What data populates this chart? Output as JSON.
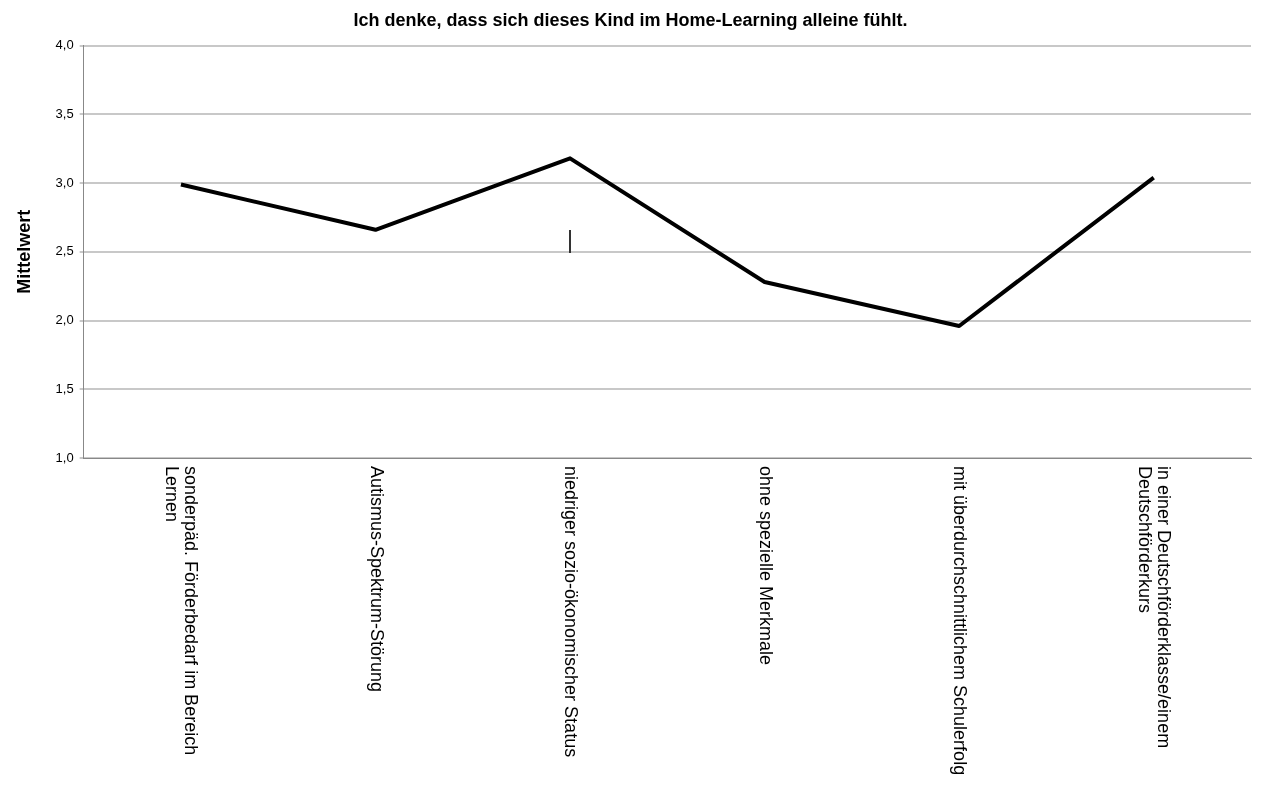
{
  "chart_data": {
    "type": "line",
    "title": "Ich denke, dass sich dieses Kind im Home-Learning alleine fühlt.",
    "ylabel": "Mittelwert",
    "categories": [
      "sonderpäd. Förderbedarf im Bereich Lernen",
      "Autismus-Spektrum-Störung",
      "niedriger sozio-ökonomischer Status",
      "ohne spezielle Merkmale",
      "mit überdurchschnittlichem Schulerfolg",
      "in einer Deutschförderklasse/einem Deutschförderkurs"
    ],
    "series": [
      {
        "color": "#000000",
        "values": [
          2.99,
          2.66,
          3.18,
          2.28,
          1.96,
          3.04
        ]
      }
    ],
    "ylim": [
      1,
      4
    ],
    "yticks": [
      {
        "value": 1,
        "label": "1,0"
      },
      {
        "value": 1.5,
        "label": "1,5"
      },
      {
        "value": 2,
        "label": "2,0"
      },
      {
        "value": 2.5,
        "label": "2,5"
      },
      {
        "value": 3,
        "label": "3,0"
      },
      {
        "value": 3.5,
        "label": "3,5"
      },
      {
        "value": 4,
        "label": "4,0"
      }
    ],
    "grid": "y",
    "legend": false,
    "marker": "none",
    "line_style": "solid"
  }
}
